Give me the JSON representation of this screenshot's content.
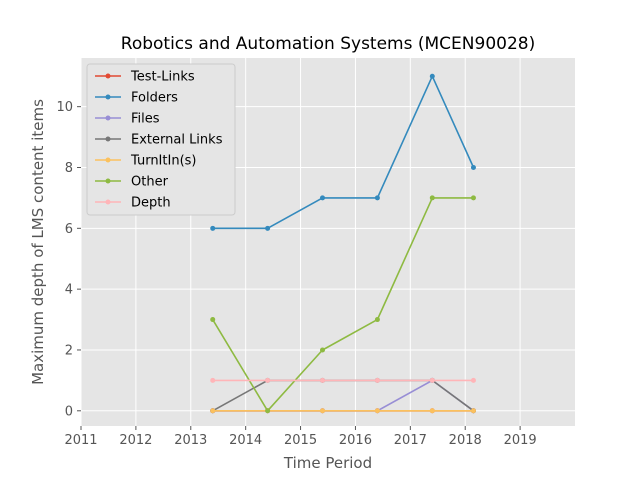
{
  "chart_data": {
    "type": "line",
    "title": "Robotics and Automation Systems (MCEN90028)",
    "xlabel": "Time Period",
    "ylabel": "Maximum depth of LMS content items",
    "xlim": [
      2011,
      2020
    ],
    "ylim": [
      -0.5,
      11.6
    ],
    "xticks": [
      2011,
      2012,
      2013,
      2014,
      2015,
      2016,
      2017,
      2018,
      2019
    ],
    "yticks": [
      0,
      2,
      4,
      6,
      8,
      10
    ],
    "grid": true,
    "legend_position": "top-left",
    "x": [
      2013.4,
      2014.4,
      2015.4,
      2016.4,
      2017.4,
      2018.15
    ],
    "series": [
      {
        "name": "Test-Links",
        "color": "#e24a33",
        "values": [
          0,
          0,
          0,
          0,
          0,
          0
        ]
      },
      {
        "name": "Folders",
        "color": "#348abd",
        "values": [
          6,
          6,
          7,
          7,
          11,
          8
        ]
      },
      {
        "name": "Files",
        "color": "#988ed5",
        "values": [
          0,
          0,
          0,
          0,
          1,
          0
        ]
      },
      {
        "name": "External Links",
        "color": "#777777",
        "values": [
          0,
          1,
          1,
          1,
          1,
          0
        ]
      },
      {
        "name": "TurnItIn(s)",
        "color": "#fbc15e",
        "values": [
          0,
          0,
          0,
          0,
          0,
          0
        ]
      },
      {
        "name": "Other",
        "color": "#8eba42",
        "values": [
          3,
          0,
          2,
          3,
          7,
          7
        ]
      },
      {
        "name": "Depth",
        "color": "#ffb5b8",
        "values": [
          1,
          1,
          1,
          1,
          1,
          1
        ]
      }
    ]
  }
}
